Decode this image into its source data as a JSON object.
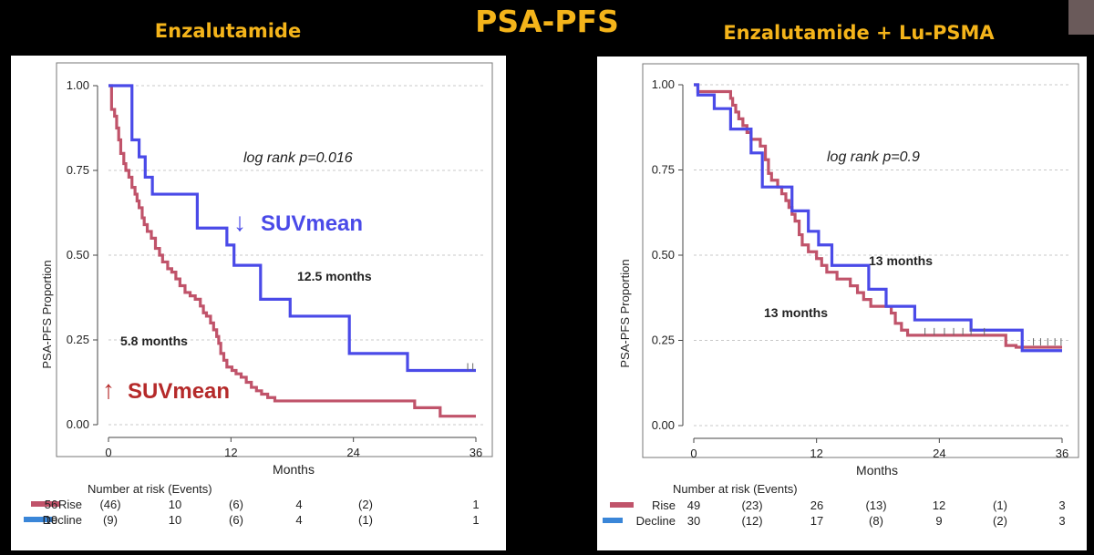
{
  "page": {
    "title": "PSA-PFS",
    "left_subtitle": "Enzalutamide",
    "right_subtitle": "Enzalutamide + Lu-PSMA"
  },
  "colors": {
    "title": "#f4b41a",
    "rise": "#c0536a",
    "decline": "#4a4ae8",
    "suv_up": "#b52a2a",
    "suv_down": "#4a4ae8"
  },
  "chart_data": [
    {
      "type": "line",
      "id": "left",
      "ylabel": "PSA-PFS Proportion",
      "xlabel": "Months",
      "xlim": [
        0,
        36
      ],
      "ylim": [
        0,
        1
      ],
      "xticks": [
        0,
        12,
        24,
        36
      ],
      "yticks": [
        0,
        0.25,
        0.5,
        0.75,
        1.0
      ],
      "ytick_labels": [
        "0.00",
        "0.25",
        "0.50",
        "0.75",
        "1.00"
      ],
      "grid": true,
      "annotations": {
        "pvalue": "log rank p=0.016",
        "median_decline": "12.5 months",
        "median_rise": "5.8 months",
        "suv_decline": "SUVmean",
        "suv_rise": "SUVmean"
      },
      "series": [
        {
          "name": "Rise",
          "color": "#c0536a",
          "steps": [
            [
              0,
              1.0
            ],
            [
              0.3,
              0.93
            ],
            [
              0.6,
              0.91
            ],
            [
              0.8,
              0.875
            ],
            [
              1.0,
              0.84
            ],
            [
              1.2,
              0.8
            ],
            [
              1.5,
              0.77
            ],
            [
              1.7,
              0.75
            ],
            [
              2.0,
              0.73
            ],
            [
              2.3,
              0.7
            ],
            [
              2.6,
              0.68
            ],
            [
              2.8,
              0.66
            ],
            [
              3.0,
              0.64
            ],
            [
              3.3,
              0.61
            ],
            [
              3.5,
              0.59
            ],
            [
              3.8,
              0.57
            ],
            [
              4.2,
              0.55
            ],
            [
              4.6,
              0.52
            ],
            [
              5.0,
              0.5
            ],
            [
              5.3,
              0.48
            ],
            [
              5.8,
              0.46
            ],
            [
              6.2,
              0.45
            ],
            [
              6.6,
              0.43
            ],
            [
              7.0,
              0.41
            ],
            [
              7.5,
              0.39
            ],
            [
              8.0,
              0.38
            ],
            [
              8.5,
              0.37
            ],
            [
              9.0,
              0.35
            ],
            [
              9.3,
              0.33
            ],
            [
              9.6,
              0.32
            ],
            [
              10.0,
              0.3
            ],
            [
              10.3,
              0.28
            ],
            [
              10.6,
              0.26
            ],
            [
              10.8,
              0.24
            ],
            [
              11.0,
              0.21
            ],
            [
              11.3,
              0.19
            ],
            [
              11.6,
              0.17
            ],
            [
              12.1,
              0.16
            ],
            [
              12.5,
              0.15
            ],
            [
              13.0,
              0.14
            ],
            [
              13.5,
              0.125
            ],
            [
              14.0,
              0.11
            ],
            [
              14.5,
              0.1
            ],
            [
              15.0,
              0.09
            ],
            [
              15.6,
              0.08
            ],
            [
              16.3,
              0.07
            ],
            [
              30.0,
              0.05
            ],
            [
              32.5,
              0.025
            ]
          ],
          "end": 36
        },
        {
          "name": "Decline",
          "color": "#4a4ae8",
          "steps": [
            [
              0,
              1.0
            ],
            [
              2.3,
              0.84
            ],
            [
              3.0,
              0.79
            ],
            [
              3.6,
              0.73
            ],
            [
              4.3,
              0.68
            ],
            [
              8.7,
              0.58
            ],
            [
              11.6,
              0.53
            ],
            [
              12.3,
              0.47
            ],
            [
              14.9,
              0.37
            ],
            [
              17.8,
              0.32
            ],
            [
              23.6,
              0.21
            ],
            [
              29.3,
              0.16
            ]
          ],
          "end": 36
        }
      ],
      "censor_marks": [
        {
          "series": "Decline",
          "x": [
            35.2,
            35.7
          ],
          "y": 0.16
        }
      ],
      "risk_table": {
        "title": "Number at risk (Events)",
        "rows": [
          {
            "label": "Rise",
            "values": [
              "56",
              "(46)",
              "10",
              "(6)",
              "4",
              "(2)",
              "1"
            ]
          },
          {
            "label": "Decline",
            "values": [
              "19",
              "(9)",
              "10",
              "(6)",
              "4",
              "(1)",
              "1"
            ]
          }
        ]
      }
    },
    {
      "type": "line",
      "id": "right",
      "ylabel": "PSA-PFS Proportion",
      "xlabel": "Months",
      "xlim": [
        0,
        36
      ],
      "ylim": [
        0,
        1
      ],
      "xticks": [
        0,
        12,
        24,
        36
      ],
      "yticks": [
        0,
        0.25,
        0.5,
        0.75,
        1.0
      ],
      "ytick_labels": [
        "0.00",
        "0.25",
        "0.50",
        "0.75",
        "1.00"
      ],
      "grid": true,
      "annotations": {
        "pvalue": "log rank p=0.9",
        "median_decline": "13 months",
        "median_rise": "13 months"
      },
      "series": [
        {
          "name": "Rise",
          "color": "#c0536a",
          "steps": [
            [
              0,
              1.0
            ],
            [
              0.4,
              0.98
            ],
            [
              3.6,
              0.96
            ],
            [
              3.8,
              0.94
            ],
            [
              4.1,
              0.92
            ],
            [
              4.4,
              0.9
            ],
            [
              4.8,
              0.88
            ],
            [
              5.2,
              0.86
            ],
            [
              5.6,
              0.84
            ],
            [
              6.5,
              0.82
            ],
            [
              7.0,
              0.78
            ],
            [
              7.3,
              0.74
            ],
            [
              7.6,
              0.72
            ],
            [
              8.2,
              0.7
            ],
            [
              8.6,
              0.68
            ],
            [
              9.0,
              0.66
            ],
            [
              9.3,
              0.64
            ],
            [
              9.6,
              0.62
            ],
            [
              9.9,
              0.6
            ],
            [
              10.3,
              0.56
            ],
            [
              10.6,
              0.53
            ],
            [
              11.2,
              0.51
            ],
            [
              12.0,
              0.49
            ],
            [
              12.5,
              0.47
            ],
            [
              13.0,
              0.45
            ],
            [
              14.0,
              0.43
            ],
            [
              15.3,
              0.41
            ],
            [
              16.0,
              0.39
            ],
            [
              16.6,
              0.37
            ],
            [
              17.3,
              0.35
            ],
            [
              19.3,
              0.33
            ],
            [
              19.7,
              0.3
            ],
            [
              20.3,
              0.28
            ],
            [
              20.9,
              0.265
            ],
            [
              30.5,
              0.235
            ],
            [
              31.5,
              0.23
            ]
          ],
          "end": 36
        },
        {
          "name": "Decline",
          "color": "#4a4ae8",
          "steps": [
            [
              0,
              1.0
            ],
            [
              0.4,
              0.97
            ],
            [
              2.0,
              0.93
            ],
            [
              3.6,
              0.87
            ],
            [
              5.6,
              0.8
            ],
            [
              6.7,
              0.7
            ],
            [
              9.6,
              0.63
            ],
            [
              11.2,
              0.57
            ],
            [
              12.2,
              0.53
            ],
            [
              13.5,
              0.47
            ],
            [
              17.1,
              0.4
            ],
            [
              18.8,
              0.35
            ],
            [
              21.6,
              0.31
            ],
            [
              27.1,
              0.28
            ],
            [
              32.1,
              0.22
            ]
          ],
          "end": 36
        }
      ],
      "censor_marks": [
        {
          "series": "Rise",
          "x": [
            22.6,
            23.5,
            24.5,
            25.4,
            26.3,
            27.1,
            28.4
          ],
          "y": 0.265
        },
        {
          "series": "Rise",
          "x": [
            33.2,
            33.9,
            34.6,
            35.3,
            35.9
          ],
          "y": 0.235
        }
      ],
      "risk_table": {
        "title": "Number at risk (Events)",
        "rows": [
          {
            "label": "Rise",
            "values": [
              "49",
              "(23)",
              "26",
              "(13)",
              "12",
              "(1)",
              "3"
            ]
          },
          {
            "label": "Decline",
            "values": [
              "30",
              "(12)",
              "17",
              "(8)",
              "9",
              "(2)",
              "3"
            ]
          }
        ]
      }
    }
  ]
}
